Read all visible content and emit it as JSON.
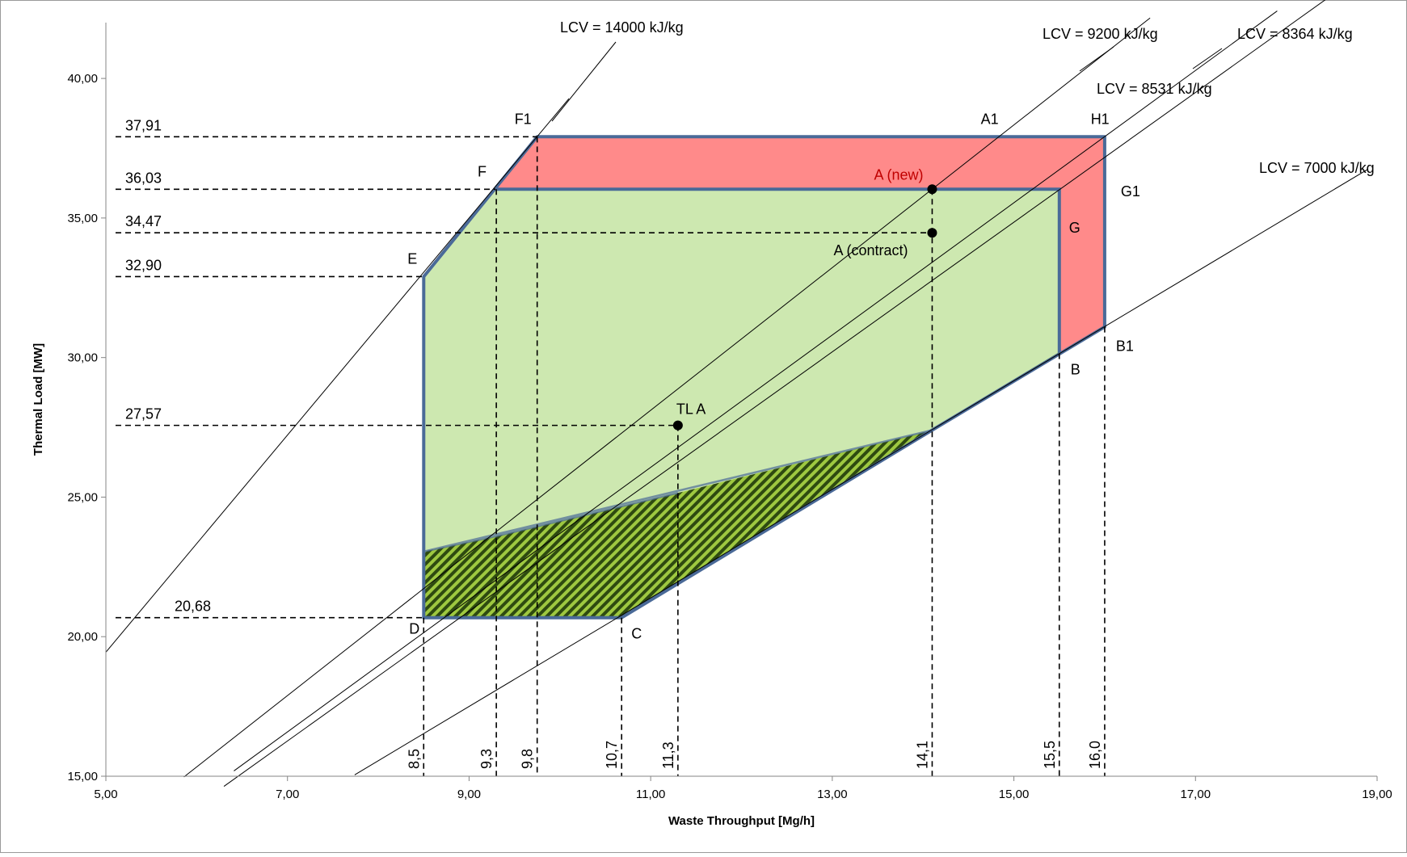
{
  "chart_data": {
    "type": "line",
    "xlabel": "Waste Throughput [Mg/h]",
    "ylabel": "Thermal Load [MW]",
    "xlim": [
      5,
      19
    ],
    "ylim": [
      15,
      42
    ],
    "x_ticks": [
      "5,00",
      "7,00",
      "9,00",
      "11,00",
      "13,00",
      "15,00",
      "17,00",
      "19,00"
    ],
    "y_ticks": [
      "15,00",
      "20,00",
      "25,00",
      "30,00",
      "35,00",
      "40,00"
    ],
    "grid": false,
    "lcv_lines": [
      {
        "label": "LCV = 14000 kJ/kg",
        "lcv": 14000
      },
      {
        "label": "LCV = 9200 kJ/kg",
        "lcv": 9200
      },
      {
        "label": "LCV = 8531 kJ/kg",
        "lcv": 8531
      },
      {
        "label": "LCV = 8364 kJ/kg",
        "lcv": 8364
      },
      {
        "label": "LCV = 7000 kJ/kg",
        "lcv": 7000
      }
    ],
    "extended_region": {
      "color": "#ff8a8a",
      "points": [
        [
          9.75,
          37.91
        ],
        [
          16.0,
          37.91
        ],
        [
          16.0,
          31.1
        ],
        [
          15.5,
          30.15
        ],
        [
          15.5,
          36.03
        ],
        [
          9.29,
          36.03
        ]
      ]
    },
    "operating_region": {
      "color": "#cde8b0",
      "points": [
        [
          8.5,
          20.68
        ],
        [
          10.68,
          20.68
        ],
        [
          14.1,
          27.4
        ],
        [
          15.5,
          30.15
        ],
        [
          15.5,
          36.03
        ],
        [
          9.29,
          36.03
        ],
        [
          8.5,
          32.9
        ]
      ]
    },
    "hatched_region": {
      "color": "#3c5a14",
      "points": [
        [
          8.5,
          20.68
        ],
        [
          10.68,
          20.68
        ],
        [
          14.1,
          27.4
        ],
        [
          11.3,
          25.15
        ],
        [
          9.3,
          23.6
        ],
        [
          8.5,
          23.05
        ]
      ]
    },
    "boundary_outline": {
      "color": "#4a6a98",
      "points": [
        [
          8.5,
          20.68
        ],
        [
          10.68,
          20.68
        ],
        [
          14.1,
          27.4
        ],
        [
          16.0,
          31.1
        ],
        [
          16.0,
          37.91
        ],
        [
          9.75,
          37.91
        ],
        [
          8.5,
          32.9
        ]
      ]
    },
    "y_reference_lines": [
      {
        "label": "37,91",
        "y": 37.91,
        "x_end": 9.75
      },
      {
        "label": "36,03",
        "y": 36.03,
        "x_end": 9.29
      },
      {
        "label": "34,47",
        "y": 34.47,
        "x_end": 14.1
      },
      {
        "label": "32,90",
        "y": 32.9,
        "x_end": 8.5
      },
      {
        "label": "27,57",
        "y": 27.57,
        "x_end": 11.3
      },
      {
        "label": "20,68",
        "y": 20.68,
        "x_end": 8.5
      }
    ],
    "x_reference_lines": [
      {
        "label": "8,5",
        "x": 8.5,
        "y_top": 20.68
      },
      {
        "label": "9,3",
        "x": 9.3,
        "y_top": 36.03
      },
      {
        "label": "9,8",
        "x": 9.75,
        "y_top": 37.91
      },
      {
        "label": "10,7",
        "x": 10.68,
        "y_top": 20.68
      },
      {
        "label": "11,3",
        "x": 11.3,
        "y_top": 27.57
      },
      {
        "label": "14,1",
        "x": 14.1,
        "y_top": 36.03
      },
      {
        "label": "15,5",
        "x": 15.5,
        "y_top": 30.15
      },
      {
        "label": "16,0",
        "x": 16.0,
        "y_top": 31.1
      }
    ],
    "markers": [
      {
        "label": "A (new)",
        "x": 14.1,
        "y": 36.03,
        "color": "#c00000"
      },
      {
        "label": "A (contract)",
        "x": 14.1,
        "y": 34.47
      },
      {
        "label": "TL A",
        "x": 11.3,
        "y": 27.57
      }
    ],
    "point_labels": [
      {
        "label": "F1",
        "x": 9.75,
        "y": 37.91
      },
      {
        "label": "A1",
        "x": 14.6,
        "y": 37.91
      },
      {
        "label": "H1",
        "x": 15.9,
        "y": 37.91
      },
      {
        "label": "F",
        "x": 9.29,
        "y": 36.03
      },
      {
        "label": "G1",
        "x": 16.0,
        "y": 37.0
      },
      {
        "label": "G",
        "x": 15.5,
        "y": 35.0
      },
      {
        "label": "E",
        "x": 8.5,
        "y": 32.9
      },
      {
        "label": "B1",
        "x": 16.0,
        "y": 31.1
      },
      {
        "label": "B",
        "x": 15.5,
        "y": 30.15
      },
      {
        "label": "D",
        "x": 8.5,
        "y": 20.68
      },
      {
        "label": "C",
        "x": 10.68,
        "y": 20.68
      }
    ]
  }
}
